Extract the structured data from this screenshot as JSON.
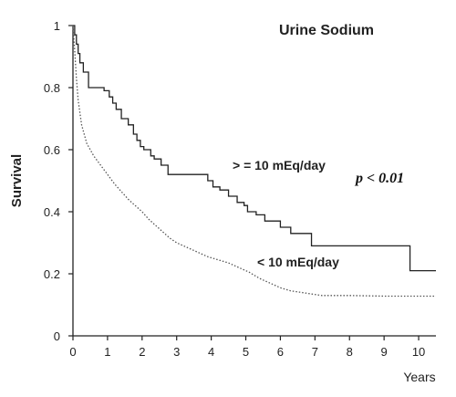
{
  "chart_data": {
    "type": "line",
    "title": "Urine Sodium",
    "xlabel": "Years",
    "ylabel": "Survival",
    "xlim": [
      0,
      10.5
    ],
    "ylim": [
      0,
      1
    ],
    "xticks": [
      0,
      1,
      2,
      3,
      4,
      5,
      6,
      7,
      8,
      9,
      10
    ],
    "yticks": [
      0,
      0.2,
      0.4,
      0.6,
      0.8,
      1
    ],
    "ytick_labels": [
      "0",
      "0.2",
      "0.4",
      "0.6",
      "0.8",
      "1"
    ],
    "annotation": "p < 0.01",
    "grid": false,
    "series": [
      {
        "name": ">= 10 mEq/day",
        "label_text": "> = 10 mEq/day",
        "style": "solid-step",
        "color": "#222222",
        "x": [
          0,
          0.05,
          0.1,
          0.15,
          0.2,
          0.3,
          0.45,
          0.9,
          1.05,
          1.15,
          1.25,
          1.4,
          1.6,
          1.75,
          1.85,
          1.95,
          2.05,
          2.15,
          2.25,
          2.35,
          2.55,
          2.75,
          2.85,
          3.9,
          4.05,
          4.25,
          4.5,
          4.75,
          4.95,
          5.05,
          5.3,
          5.55,
          5.8,
          6.0,
          6.3,
          6.9,
          7.0,
          9.75,
          10.5
        ],
        "y": [
          1.0,
          0.97,
          0.94,
          0.91,
          0.88,
          0.85,
          0.8,
          0.79,
          0.77,
          0.75,
          0.73,
          0.7,
          0.68,
          0.65,
          0.63,
          0.61,
          0.6,
          0.6,
          0.58,
          0.57,
          0.55,
          0.52,
          0.52,
          0.5,
          0.48,
          0.47,
          0.45,
          0.43,
          0.42,
          0.4,
          0.39,
          0.37,
          0.37,
          0.35,
          0.33,
          0.29,
          0.29,
          0.21,
          0.21
        ]
      },
      {
        "name": "< 10 mEq/day",
        "label_text": "< 10 mEq/day",
        "style": "dotted",
        "color": "#555555",
        "x": [
          0,
          0.05,
          0.1,
          0.15,
          0.25,
          0.4,
          0.6,
          0.8,
          1.0,
          1.2,
          1.4,
          1.6,
          1.8,
          2.0,
          2.2,
          2.4,
          2.6,
          2.8,
          3.0,
          3.3,
          3.6,
          3.9,
          4.2,
          4.5,
          4.8,
          5.1,
          5.4,
          5.7,
          6.0,
          6.3,
          6.6,
          6.9,
          7.2,
          7.6,
          8.0,
          9.0,
          10.5
        ],
        "y": [
          1.0,
          0.92,
          0.83,
          0.76,
          0.68,
          0.62,
          0.58,
          0.55,
          0.52,
          0.49,
          0.465,
          0.44,
          0.42,
          0.4,
          0.375,
          0.355,
          0.335,
          0.315,
          0.3,
          0.285,
          0.27,
          0.255,
          0.245,
          0.235,
          0.22,
          0.205,
          0.185,
          0.17,
          0.155,
          0.145,
          0.14,
          0.135,
          0.13,
          0.13,
          0.13,
          0.128,
          0.128
        ]
      }
    ]
  }
}
